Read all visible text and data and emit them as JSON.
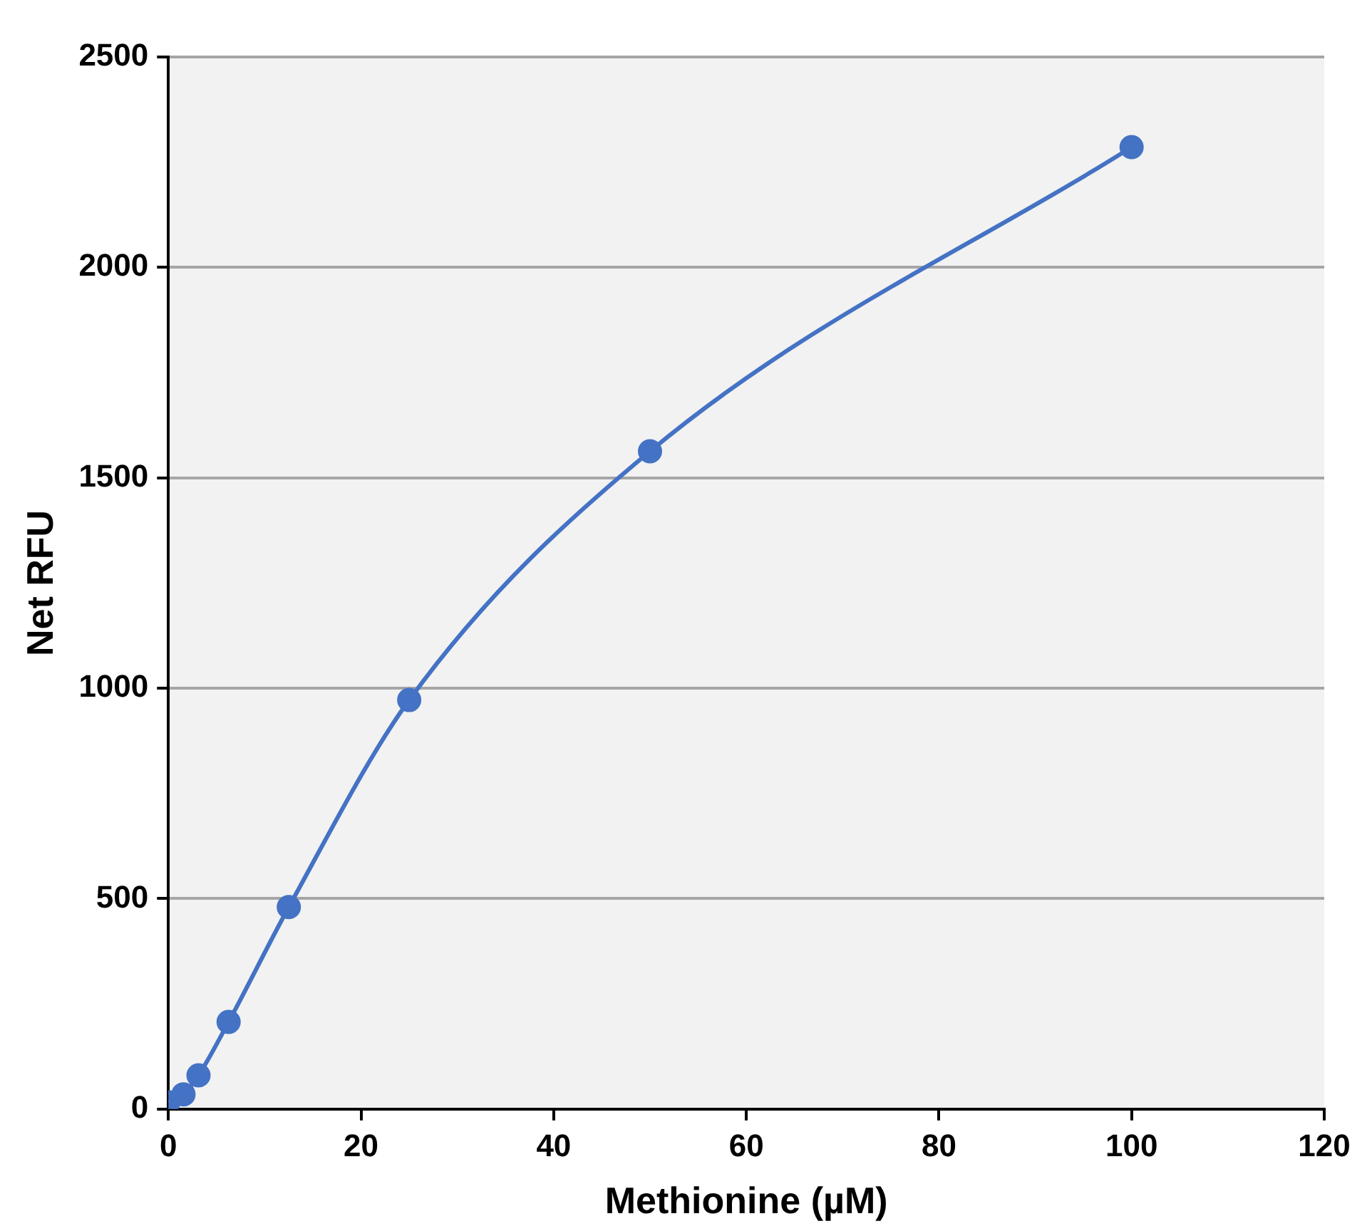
{
  "chart_data": {
    "type": "line",
    "xlabel": "Methionine (µM)",
    "ylabel": "Net RFU",
    "x": [
      0,
      1.5625,
      3.125,
      6.25,
      12.5,
      25,
      50,
      100
    ],
    "series": [
      {
        "color": "#4472c4",
        "values": [
          16,
          35,
          80,
          207,
          480,
          972,
          1563,
          2286
        ]
      }
    ],
    "xlim": [
      0,
      120
    ],
    "xticks": [
      0,
      20,
      40,
      60,
      80,
      100,
      120
    ],
    "ylim": [
      0,
      2500
    ],
    "yticks": [
      0,
      500,
      1000,
      1500,
      2000,
      2500
    ],
    "grid": "y",
    "legend": false,
    "marker": "circle",
    "line_style": "solid"
  }
}
